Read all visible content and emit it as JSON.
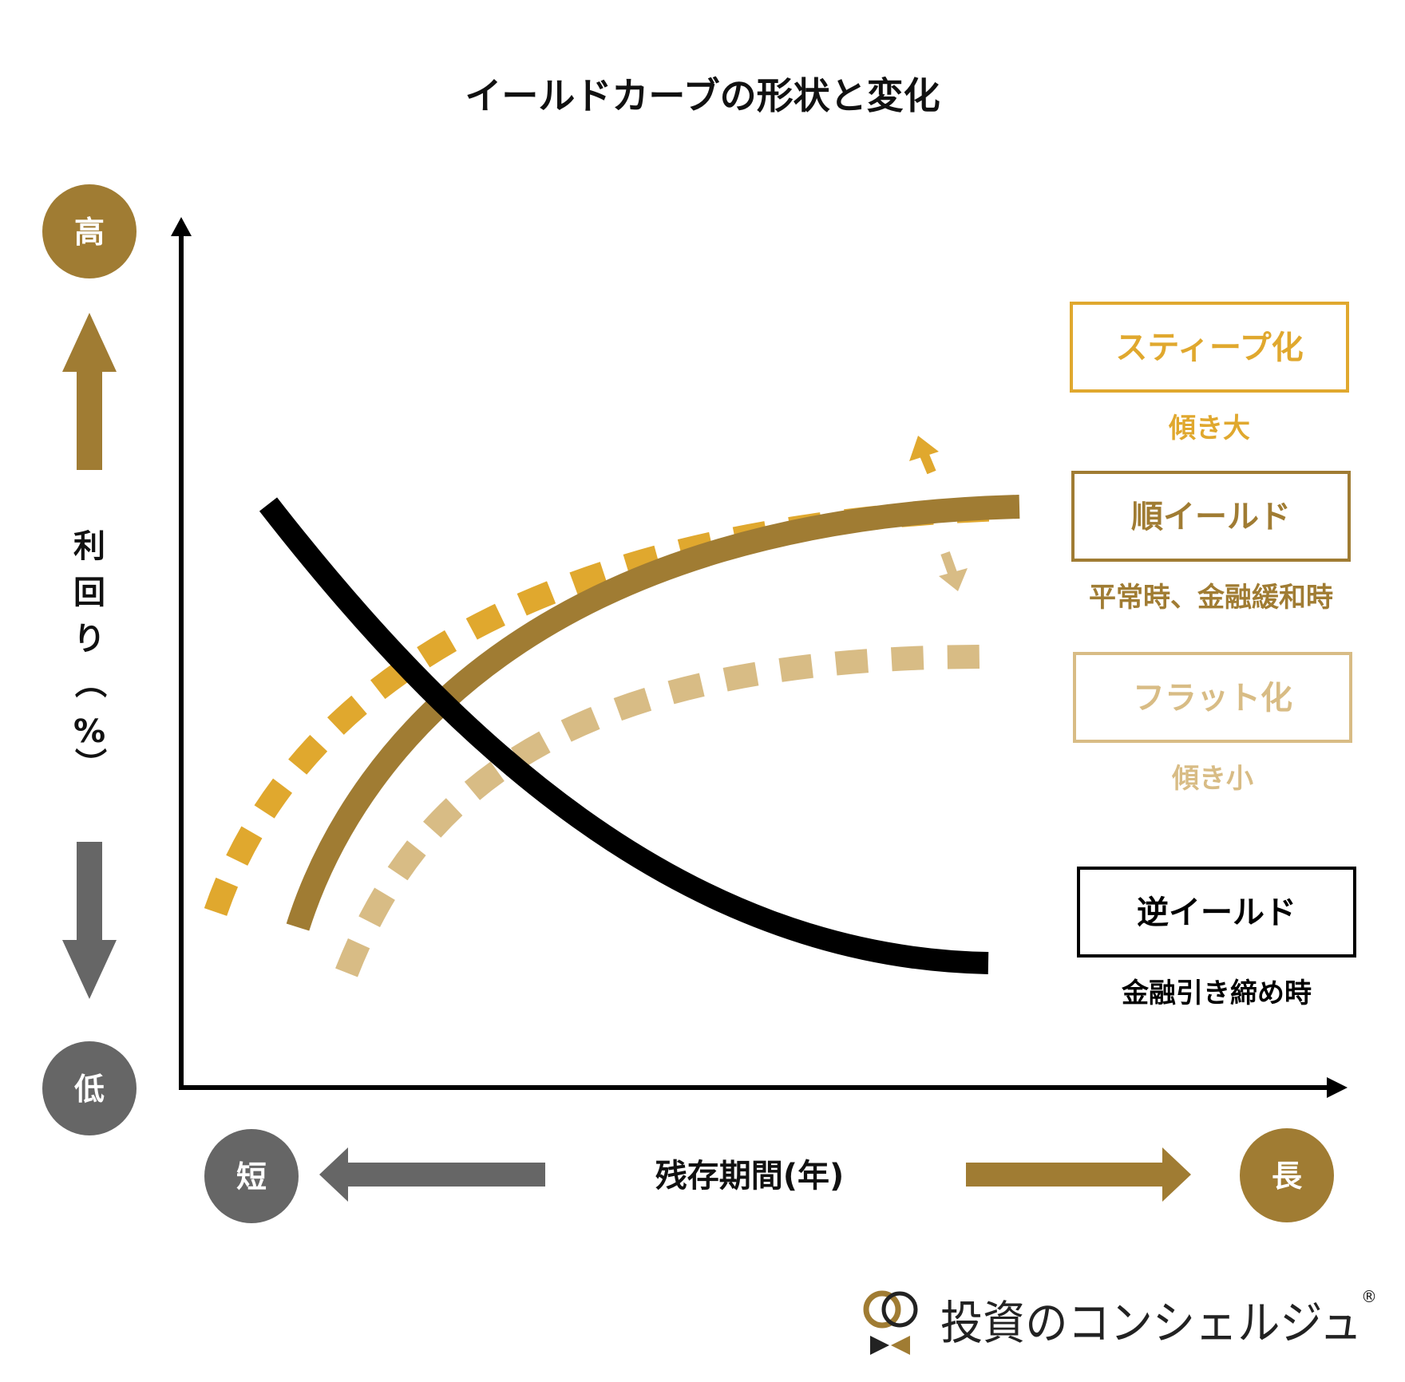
{
  "title": "イールドカーブの形状と変化",
  "y_axis": {
    "label_chars": [
      "利",
      "回",
      "り",
      "（",
      "%",
      "）"
    ],
    "high_label": "高",
    "low_label": "低"
  },
  "x_axis": {
    "label": "残存期間(年)",
    "short_label": "短",
    "long_label": "長"
  },
  "legend": {
    "steep": {
      "label": "スティープ化",
      "caption": "傾き大",
      "color": "#E0A82E"
    },
    "normal": {
      "label": "順イールド",
      "caption": "平常時、金融緩和時",
      "color": "#A07C33"
    },
    "flat": {
      "label": "フラット化",
      "caption": "傾き小",
      "color": "#D8BC85"
    },
    "inverted": {
      "label": "逆イールド",
      "caption": "金融引き締め時",
      "color": "#000000"
    }
  },
  "colors": {
    "high_circle": "#A07C33",
    "low_circle": "#666666",
    "axis": "#000000"
  },
  "brand": {
    "name": "投資のコンシェルジュ",
    "mark": "®"
  }
}
